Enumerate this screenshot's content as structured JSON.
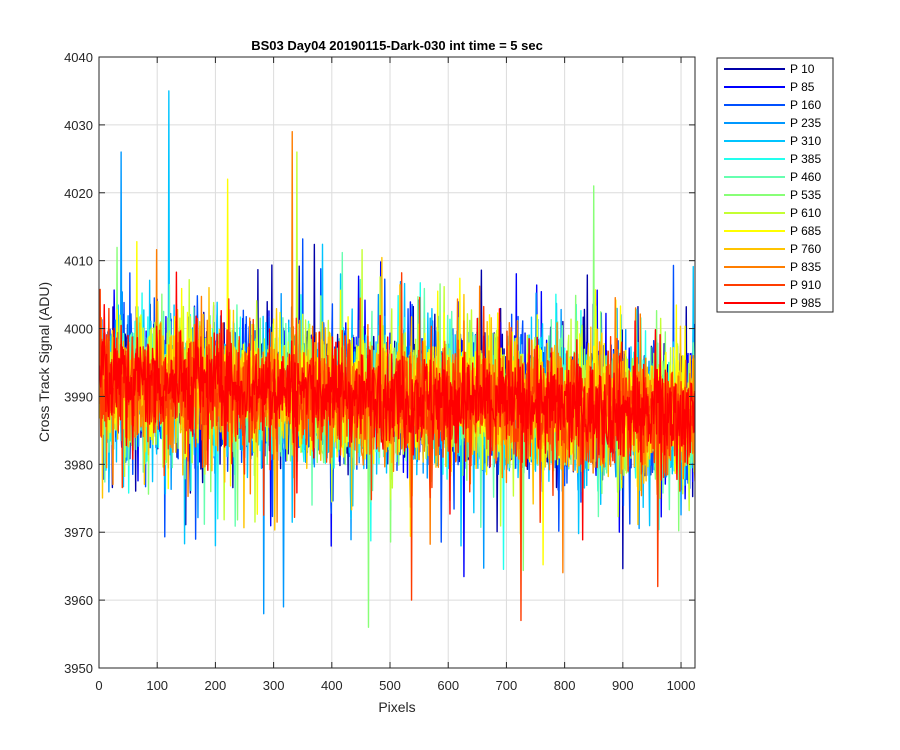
{
  "chart_data": {
    "type": "line",
    "title": "BS03 Day04 20190115-Dark-030 int time = 5 sec",
    "xlabel": "Pixels",
    "ylabel": "Cross Track Signal (ADU)",
    "xlim": [
      0,
      1024
    ],
    "ylim": [
      3950,
      4040
    ],
    "x_ticks": [
      0,
      100,
      200,
      300,
      400,
      500,
      600,
      700,
      800,
      900,
      1000
    ],
    "y_ticks": [
      3950,
      3960,
      3970,
      3980,
      3990,
      4000,
      4010,
      4020,
      4030,
      4040
    ],
    "grid": true,
    "legend_position": "outside-top-right",
    "x_range": [
      1,
      1024
    ],
    "noise_summary": "dense overlapping noise traces; mean ~3992 near pixel 0 declining to ~3987 near pixel 1024, typical range ~3970-4010",
    "series": [
      {
        "name": "P 10",
        "color": "#0000A8",
        "mean_start": 3992,
        "mean_end": 3988,
        "spread": 11
      },
      {
        "name": "P 85",
        "color": "#0000FF",
        "mean_start": 3993,
        "mean_end": 3988,
        "spread": 11
      },
      {
        "name": "P 160",
        "color": "#0050FF",
        "mean_start": 3992,
        "mean_end": 3987,
        "spread": 11
      },
      {
        "name": "P 235",
        "color": "#0098FF",
        "mean_start": 3992,
        "mean_end": 3987,
        "spread": 10
      },
      {
        "name": "P 310",
        "color": "#00C4FF",
        "mean_start": 3991,
        "mean_end": 3987,
        "spread": 11
      },
      {
        "name": "P 385",
        "color": "#22FFEE",
        "mean_start": 3992,
        "mean_end": 3987,
        "spread": 10
      },
      {
        "name": "P 460",
        "color": "#66FFB0",
        "mean_start": 3992,
        "mean_end": 3988,
        "spread": 10
      },
      {
        "name": "P 535",
        "color": "#88FF77",
        "mean_start": 3992,
        "mean_end": 3987,
        "spread": 10
      },
      {
        "name": "P 610",
        "color": "#C4FF33",
        "mean_start": 3993,
        "mean_end": 3988,
        "spread": 10
      },
      {
        "name": "P 685",
        "color": "#FFFF00",
        "mean_start": 3993,
        "mean_end": 3988,
        "spread": 10
      },
      {
        "name": "P 760",
        "color": "#FFC400",
        "mean_start": 3992,
        "mean_end": 3987,
        "spread": 10
      },
      {
        "name": "P 835",
        "color": "#FF7E00",
        "mean_start": 3992,
        "mean_end": 3987,
        "spread": 10
      },
      {
        "name": "P 910",
        "color": "#FF3C00",
        "mean_start": 3992,
        "mean_end": 3987,
        "spread": 9
      },
      {
        "name": "P 985",
        "color": "#FF0000",
        "mean_start": 3993,
        "mean_end": 3987,
        "spread": 8
      }
    ],
    "notable_points": [
      {
        "series": "P 310",
        "x": 120,
        "y": 4035
      },
      {
        "series": "P 835",
        "x": 332,
        "y": 4029
      },
      {
        "series": "P 610",
        "x": 340,
        "y": 4026
      },
      {
        "series": "P 235",
        "x": 38,
        "y": 4026
      },
      {
        "series": "P 535",
        "x": 850,
        "y": 4021
      },
      {
        "series": "P 685",
        "x": 221,
        "y": 4022
      },
      {
        "series": "P 235",
        "x": 283,
        "y": 3958
      },
      {
        "series": "P 235",
        "x": 317,
        "y": 3959
      },
      {
        "series": "P 535",
        "x": 463,
        "y": 3956
      },
      {
        "series": "P 910",
        "x": 537,
        "y": 3960
      },
      {
        "series": "P 910",
        "x": 725,
        "y": 3957
      },
      {
        "series": "P 910",
        "x": 960,
        "y": 3962
      }
    ]
  }
}
